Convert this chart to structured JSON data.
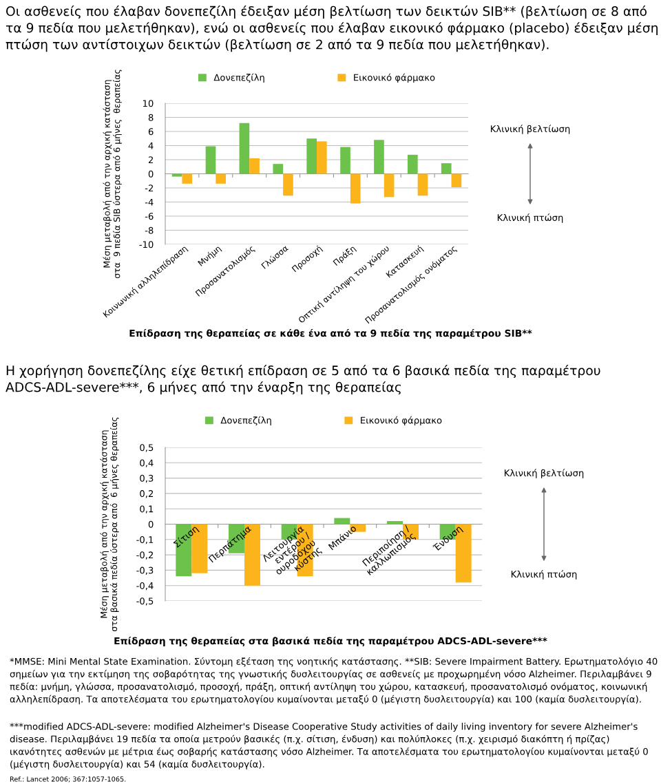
{
  "chart_data": [
    {
      "type": "bar",
      "title": "Οι ασθενείς που έλαβαν δονεπεζίλη έδειξαν μέση βελτίωση των δεικτών SIB** (βελτίωση σε 8 από τα 9 πεδία που μελετήθηκαν), ενώ οι ασθενείς που έλαβαν εικονικό φάρμακο (placebo) έδειξαν μέση πτώση των αντίστοιχων δεικτών (βελτίωση σε 2 από τα 9 πεδία που μελετήθηκαν).",
      "ylabel": "Μέση μεταβολή από την αρχική κατάσταση\nστα  9 πεδία SIB ύστερα από 6 μήνες  θεραπείας",
      "xlabel": "Επίδραση της θεραπείας σε κάθε ένα από τα 9 πεδία της παραμέτρου SIB**",
      "categories": [
        "Κοινωνική αλληλεπίδραση",
        "Μνήμη",
        "Προσανατολισμός",
        "Γλώσσα",
        "Προσοχή",
        "Πράξη",
        "Οπτική αντίληψη του χώρου",
        "Κατασκευή",
        "Προσανατολισμός ονόματος"
      ],
      "series": [
        {
          "name": "Δονεπεζίλη",
          "color": "#6cc24a",
          "values": [
            -0.4,
            3.9,
            7.2,
            1.4,
            5.0,
            3.8,
            4.8,
            2.7,
            1.5
          ]
        },
        {
          "name": "Εικονικό φάρμακο",
          "color": "#fbb41a",
          "values": [
            -1.4,
            -1.4,
            2.2,
            -3.1,
            4.6,
            -4.2,
            -3.3,
            -3.1,
            -1.9
          ]
        }
      ],
      "ylim": [
        -10,
        10
      ],
      "yticks": [
        10,
        8,
        6,
        4,
        2,
        0,
        -2,
        -4,
        -6,
        -8,
        -10
      ],
      "grid": "y",
      "legend": "top",
      "annotations": [
        "Κλινική βελτίωση",
        "Κλινική πτώση"
      ]
    },
    {
      "type": "bar",
      "title": "Η χορήγηση δονεπεζίλης είχε θετική επίδραση σε 5 από τα 6 βασικά πεδία της παραμέτρου ADCS-ADL-severe***, 6 μήνες από την έναρξη της θεραπείας",
      "ylabel": "Μέση μεταβολή από την αρχική κατάσταση\nστα βασικά πεδία ύστερα από  6 μήνες θεραπείας",
      "xlabel": "Επίδραση της θεραπείας στα βασικά πεδία της παραμέτρου ADCS-ADL-severe***",
      "categories": [
        "Σίτιση",
        "Περπάτημα",
        "Λειτουργία\nεντέρου /\nουροδόχου\nκύστης",
        "Μπάνιο",
        "Περιποίηση /\nκαλλωπισμός",
        "Ένδυση"
      ],
      "series": [
        {
          "name": "Δονεπεζίλη",
          "color": "#6cc24a",
          "values": [
            -0.34,
            -0.19,
            -0.1,
            0.04,
            0.02,
            -0.1
          ]
        },
        {
          "name": "Εικονικό φάρμακο",
          "color": "#fbb41a",
          "values": [
            -0.32,
            -0.4,
            -0.34,
            -0.05,
            -0.1,
            -0.38
          ]
        }
      ],
      "ylim": [
        -0.5,
        0.5
      ],
      "yticks": [
        {
          "value": 0.5,
          "label": "0,5"
        },
        {
          "value": 0.4,
          "label": "0,4"
        },
        {
          "value": 0.3,
          "label": "0,3"
        },
        {
          "value": 0.2,
          "label": "0,2"
        },
        {
          "value": 0.1,
          "label": "0,1"
        },
        0,
        {
          "value": -0.1,
          "label": "-0,1"
        },
        {
          "value": -0.2,
          "label": "-0,2"
        },
        {
          "value": -0.3,
          "label": "-0,3"
        },
        {
          "value": -0.4,
          "label": "-0,4"
        },
        {
          "value": -0.5,
          "label": "-0,5"
        }
      ],
      "grid": "y",
      "legend": "top",
      "annotations": [
        "Κλινική βελτίωση",
        "Κλινική πτώση",
        "*MMSE: Mini Mental State Examination. Σύντομη εξέταση της νοητικής κατάστασης. **SIB: Severe Impairment Battery. Ερωτηματολόγιο 40 σημείων για την εκτίμηση της σοβαρότητας της γνωστικής δυσλειτουργίας σε ασθενείς με προχωρημένη νόσο Alzheimer. Περιλαμβάνει 9 πεδία: μνήμη, γλώσσα, προσανατολισμό, προσοχή, πράξη, οπτική αντίληψη του χώρου, κατασκευή, προσανατολισμό ονόματος, κοινωνική αλληλεπίδραση. Τα αποτελέσματα του ερωτηματολογίου κυμαίνονται μεταξύ 0 (μέγιστη δυσλειτουργία) και 100 (καμία δυσλειτουργία).",
        "***modified ADCS-ADL-severe: modified Alzheimer's Disease Cooperative Study activities of daily living inventory for severe Alzheimer's disease. Περιλαμβάνει 19 πεδία τα οποία μετρούν βασικές (π.χ. σίτιση, ένδυση) και πολύπλοκες (π.χ. χειρισμό διακόπτη ή πρίζας) ικανότητες ασθενών με μέτρια έως σοβαρής κατάστασης νόσο Alzheimer. Τα αποτελέσματα του ερωτηματολογίου κυμαίνονται μεταξύ 0 (μέγιστη δυσλειτουργία) και 54 (καμία δυσλειτουργία).",
        "Ref.: Lancet 2006; 367:1057-1065."
      ]
    }
  ]
}
